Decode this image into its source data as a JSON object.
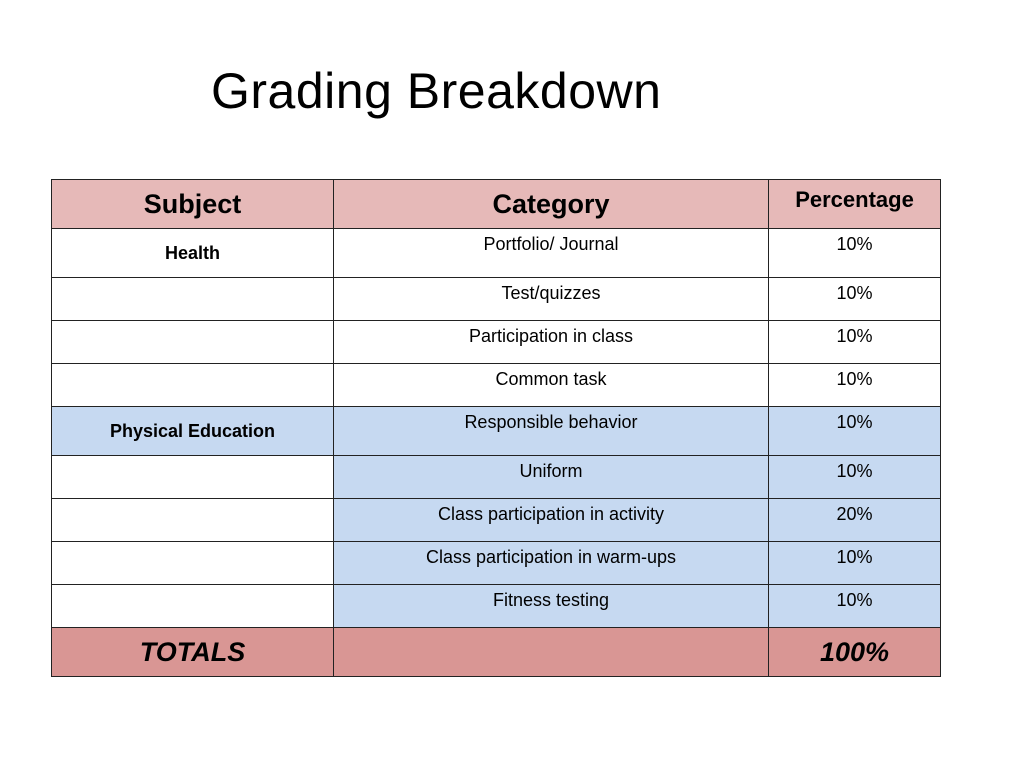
{
  "title": "Grading Breakdown",
  "table": {
    "headers": [
      "Subject",
      "Category",
      "Percentage"
    ],
    "rows": [
      {
        "subject": "Health",
        "category": "Portfolio/ Journal",
        "percentage": "10%"
      },
      {
        "subject": "",
        "category": "Test/quizzes",
        "percentage": "10%"
      },
      {
        "subject": "",
        "category": "Participation in class",
        "percentage": "10%"
      },
      {
        "subject": "",
        "category": "Common task",
        "percentage": "10%"
      },
      {
        "subject": "Physical Education",
        "category": "Responsible behavior",
        "percentage": "10%"
      },
      {
        "subject": "",
        "category": "Uniform",
        "percentage": "10%"
      },
      {
        "subject": "",
        "category": "Class participation in activity",
        "percentage": "20%"
      },
      {
        "subject": "",
        "category": "Class participation in warm-ups",
        "percentage": "10%"
      },
      {
        "subject": "",
        "category": "Fitness testing",
        "percentage": "10%"
      }
    ],
    "totals": {
      "label": "TOTALS",
      "category": "",
      "percentage": "100%"
    }
  },
  "colors": {
    "header": "#e6b9b8",
    "pe_rows": "#c6d9f1",
    "totals": "#d99694"
  }
}
